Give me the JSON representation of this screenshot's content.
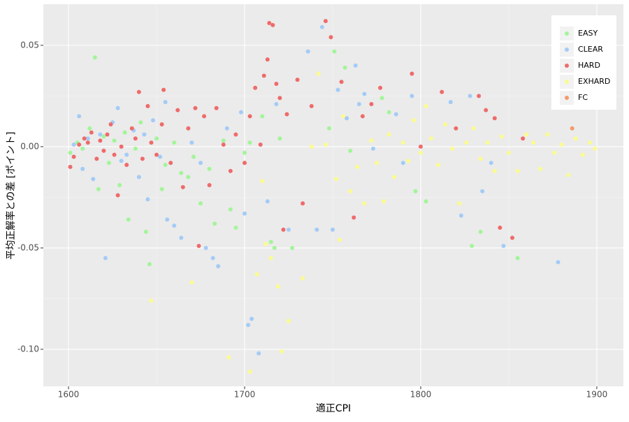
{
  "chart_data": {
    "type": "scatter",
    "xlabel": "適正CPI",
    "ylabel": "平均正解率との差 [ポイント]",
    "xlim": [
      1585.7,
      1915.1
    ],
    "ylim": [
      -0.1183,
      0.0703
    ],
    "xticks": [
      1600,
      1700,
      1800,
      1900
    ],
    "yticks": [
      {
        "value": -0.1,
        "label": "-0.10"
      },
      {
        "value": -0.05,
        "label": "-0.05"
      },
      {
        "value": 0,
        "label": "0.00"
      },
      {
        "value": 0.05,
        "label": "0.05"
      }
    ],
    "minor_xgrid": [
      1650,
      1750,
      1850
    ],
    "minor_ygrid": [
      -0.075,
      -0.025,
      0.025
    ],
    "grid": true,
    "legend": "top-right",
    "series": [
      {
        "name": "EASY",
        "color": "#a3f59a",
        "x": [
          1601,
          1605,
          1608,
          1612,
          1615,
          1617,
          1620,
          1623,
          1626,
          1629,
          1632,
          1634,
          1638,
          1641,
          1644,
          1646,
          1650,
          1653,
          1655,
          1660,
          1664,
          1668,
          1671,
          1675,
          1680,
          1683,
          1688,
          1692,
          1695,
          1700,
          1703,
          1710,
          1715,
          1717,
          1720,
          1727,
          1748,
          1751,
          1757,
          1760,
          1778,
          1782,
          1797,
          1803,
          1829,
          1834,
          1855
        ],
        "values": [
          -0.003,
          0.002,
          -0.001,
          0.009,
          0.044,
          -0.021,
          0.005,
          -0.008,
          0.003,
          -0.019,
          0.007,
          -0.036,
          -0.001,
          0.012,
          -0.042,
          -0.058,
          0.004,
          -0.021,
          -0.009,
          0.002,
          -0.013,
          -0.015,
          -0.005,
          -0.028,
          -0.011,
          -0.038,
          0.003,
          -0.031,
          -0.04,
          -0.003,
          0.002,
          0.015,
          -0.047,
          -0.05,
          0.004,
          -0.05,
          0.009,
          0.047,
          0.039,
          -0.002,
          0.024,
          0.017,
          -0.022,
          -0.027,
          -0.049,
          -0.042,
          -0.055
        ]
      },
      {
        "name": "CLEAR",
        "color": "#a4cbf6",
        "x": [
          1603,
          1606,
          1608,
          1611,
          1614,
          1618,
          1621,
          1625,
          1628,
          1630,
          1633,
          1637,
          1640,
          1643,
          1645,
          1648,
          1652,
          1655,
          1656,
          1660,
          1664,
          1670,
          1675,
          1678,
          1682,
          1685,
          1690,
          1698,
          1700,
          1702,
          1704,
          1708,
          1713,
          1718,
          1725,
          1736,
          1741,
          1744,
          1750,
          1753,
          1758,
          1763,
          1765,
          1768,
          1773,
          1786,
          1790,
          1795,
          1817,
          1823,
          1828,
          1835,
          1840,
          1847,
          1878
        ],
        "values": [
          0.001,
          0.015,
          -0.011,
          0.004,
          -0.016,
          0.006,
          -0.055,
          0.012,
          0.019,
          -0.007,
          -0.004,
          0.008,
          -0.015,
          0.006,
          -0.026,
          0.013,
          -0.005,
          0.022,
          -0.036,
          -0.039,
          -0.045,
          0.002,
          -0.008,
          -0.05,
          -0.055,
          -0.059,
          0.009,
          0.017,
          -0.033,
          -0.088,
          -0.085,
          -0.102,
          -0.027,
          0.021,
          -0.041,
          0.047,
          -0.041,
          0.059,
          -0.041,
          0.028,
          0.014,
          0.04,
          0.021,
          0.026,
          -0.001,
          0.016,
          -0.008,
          0.025,
          0.022,
          -0.034,
          0.025,
          -0.022,
          -0.008,
          -0.049,
          -0.057
        ]
      },
      {
        "name": "HARD",
        "color": "#ee6b6b",
        "x": [
          1601,
          1603,
          1606,
          1609,
          1611,
          1613,
          1616,
          1618,
          1620,
          1622,
          1624,
          1626,
          1628,
          1630,
          1633,
          1636,
          1638,
          1640,
          1642,
          1645,
          1647,
          1650,
          1653,
          1654,
          1658,
          1662,
          1665,
          1668,
          1672,
          1674,
          1677,
          1680,
          1684,
          1688,
          1692,
          1695,
          1700,
          1703,
          1706,
          1709,
          1711,
          1713,
          1714,
          1716,
          1718,
          1720,
          1722,
          1724,
          1730,
          1733,
          1738,
          1746,
          1749,
          1755,
          1762,
          1767,
          1772,
          1777,
          1795,
          1800,
          1812,
          1820,
          1833,
          1837,
          1842,
          1845,
          1852,
          1858
        ],
        "values": [
          -0.01,
          -0.005,
          0.001,
          0.004,
          0.002,
          0.007,
          -0.006,
          0.003,
          -0.002,
          0.006,
          0.011,
          -0.004,
          -0.024,
          0.0,
          -0.009,
          0.009,
          0.004,
          0.027,
          -0.006,
          0.02,
          0.002,
          -0.004,
          0.011,
          0.028,
          -0.008,
          0.018,
          -0.02,
          0.009,
          0.019,
          -0.049,
          0.015,
          -0.019,
          0.019,
          0.001,
          -0.012,
          0.006,
          -0.008,
          0.015,
          0.029,
          0.001,
          0.035,
          0.043,
          0.061,
          0.06,
          0.031,
          0.024,
          -0.041,
          0.016,
          0.033,
          -0.028,
          0.02,
          0.062,
          0.054,
          0.032,
          -0.035,
          0.015,
          0.021,
          0.029,
          0.036,
          0.0,
          0.027,
          0.009,
          0.025,
          0.018,
          0.014,
          -0.04,
          -0.045,
          0.004
        ]
      },
      {
        "name": "EXHARD",
        "color": "#fbfb8f",
        "x": [
          1647,
          1670,
          1691,
          1703,
          1707,
          1710,
          1712,
          1715,
          1719,
          1721,
          1725,
          1733,
          1738,
          1742,
          1746,
          1752,
          1754,
          1756,
          1760,
          1764,
          1768,
          1772,
          1775,
          1779,
          1782,
          1785,
          1790,
          1793,
          1796,
          1800,
          1803,
          1806,
          1810,
          1814,
          1818,
          1822,
          1826,
          1830,
          1834,
          1838,
          1842,
          1846,
          1850,
          1855,
          1860,
          1864,
          1868,
          1872,
          1876,
          1880,
          1884,
          1888,
          1892,
          1896,
          1899
        ],
        "values": [
          -0.076,
          -0.067,
          -0.104,
          -0.111,
          -0.063,
          -0.017,
          -0.048,
          -0.055,
          -0.069,
          -0.101,
          -0.086,
          -0.065,
          0.0,
          0.036,
          0.001,
          -0.016,
          -0.046,
          0.015,
          -0.022,
          -0.01,
          -0.028,
          0.003,
          -0.008,
          -0.027,
          0.006,
          -0.015,
          0.002,
          -0.007,
          0.013,
          -0.003,
          0.02,
          0.004,
          -0.009,
          0.011,
          -0.001,
          -0.028,
          0.002,
          0.009,
          -0.006,
          0.002,
          -0.012,
          0.005,
          -0.003,
          -0.012,
          0.006,
          0.002,
          -0.011,
          0.006,
          -0.003,
          0.001,
          -0.014,
          0.004,
          -0.004,
          0.002,
          -0.001
        ]
      },
      {
        "name": "FC",
        "color": "#f59a6b",
        "x": [
          1886
        ],
        "values": [
          0.009
        ]
      }
    ]
  }
}
